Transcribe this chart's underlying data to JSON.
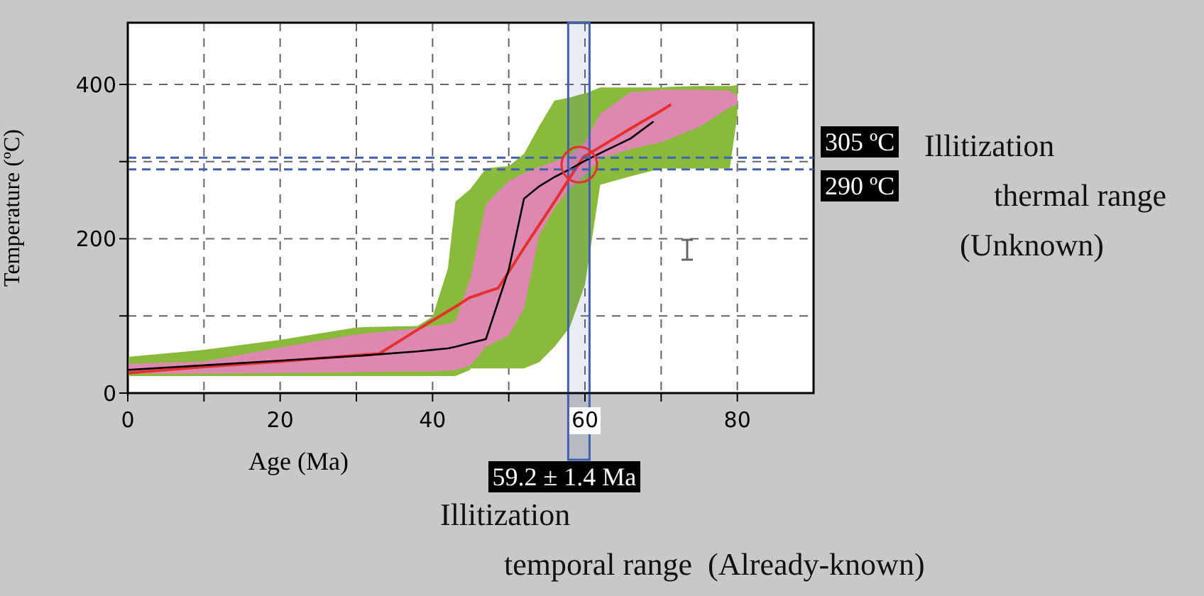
{
  "chart_data": {
    "type": "line",
    "xlabel": "Age (Ma)",
    "ylabel": "Temperature (ºC)",
    "xlim": [
      0,
      90
    ],
    "ylim": [
      0,
      480
    ],
    "xticks": [
      0,
      {
        "value": 10,
        "label": null
      },
      20,
      {
        "value": 30,
        "label": null
      },
      40,
      {
        "value": 50,
        "label": null
      },
      60,
      {
        "value": 70,
        "label": null
      },
      80
    ],
    "yticks": [
      0,
      {
        "value": 100,
        "label": null
      },
      200,
      {
        "value": 300,
        "label": null
      },
      400
    ],
    "grid": true,
    "series": [
      {
        "color": "#e53030",
        "x": [
          0,
          10,
          20,
          30,
          33,
          38,
          40,
          42,
          43,
          44.9,
          45,
          47,
          48.6,
          50,
          52,
          54,
          56,
          58,
          59.8,
          60,
          62,
          66,
          70,
          71.3,
          75,
          79,
          80
        ],
        "values": [
          26,
          34,
          41,
          49,
          51,
          82,
          94,
          106,
          112,
          124,
          124,
          131,
          136,
          157,
          188,
          218,
          248,
          279,
          306,
          307,
          319,
          343,
          366,
          374,
          null,
          null,
          null
        ],
        "lower": [
          22,
          22,
          22,
          22,
          22,
          22,
          22,
          22,
          22,
          30,
          32,
          32,
          32,
          32,
          32,
          40,
          60,
          85,
          135,
          140,
          270,
          281,
          291,
          291,
          291,
          291,
          360
        ],
        "upper": [
          47,
          56,
          69,
          85,
          86,
          87,
          99,
          161,
          248,
          264,
          265,
          291,
          293,
          294,
          310,
          346,
          379,
          383,
          388,
          388,
          396,
          396,
          396,
          397,
          398,
          398,
          399
        ]
      },
      {
        "color": "#000000",
        "x": [
          0,
          10,
          20,
          30,
          38,
          40,
          42,
          43,
          45,
          47,
          50,
          52,
          54,
          56,
          58,
          60,
          62,
          66,
          69,
          70,
          75,
          79,
          80
        ],
        "values": [
          30,
          36,
          42,
          48,
          54,
          56,
          58,
          60,
          65,
          70,
          160,
          252,
          268,
          280,
          290,
          301,
          311,
          330,
          352,
          null,
          null,
          null,
          null
        ],
        "lower": [
          25,
          25,
          26,
          27,
          28,
          28,
          29,
          30,
          36,
          60,
          75,
          110,
          205,
          240,
          265,
          283,
          304,
          316,
          323,
          325,
          345,
          370,
          375
        ],
        "upper": [
          38,
          41,
          59,
          76,
          84,
          87,
          90,
          93,
          150,
          245,
          275,
          285,
          293,
          300,
          308,
          325,
          362,
          390,
          392,
          393,
          393,
          392,
          385
        ]
      }
    ],
    "ref_lines": [
      {
        "axis": "y",
        "value": 305,
        "label": "305 ºC",
        "color": "#4060b0",
        "line_style": "dashed"
      },
      {
        "axis": "y",
        "value": 290,
        "label": "290 ºC",
        "color": "#4060b0",
        "line_style": "dashed"
      }
    ],
    "bands": [
      {
        "axis": "x",
        "from": 57.8,
        "to": 60.6,
        "label": "59.2 ± 1.4 Ma",
        "color": "#4060b0"
      }
    ],
    "annotations": [
      "Illitization",
      "thermal range",
      "(Unknown)",
      "Illitization",
      "temporal range  (Already-known)"
    ]
  }
}
